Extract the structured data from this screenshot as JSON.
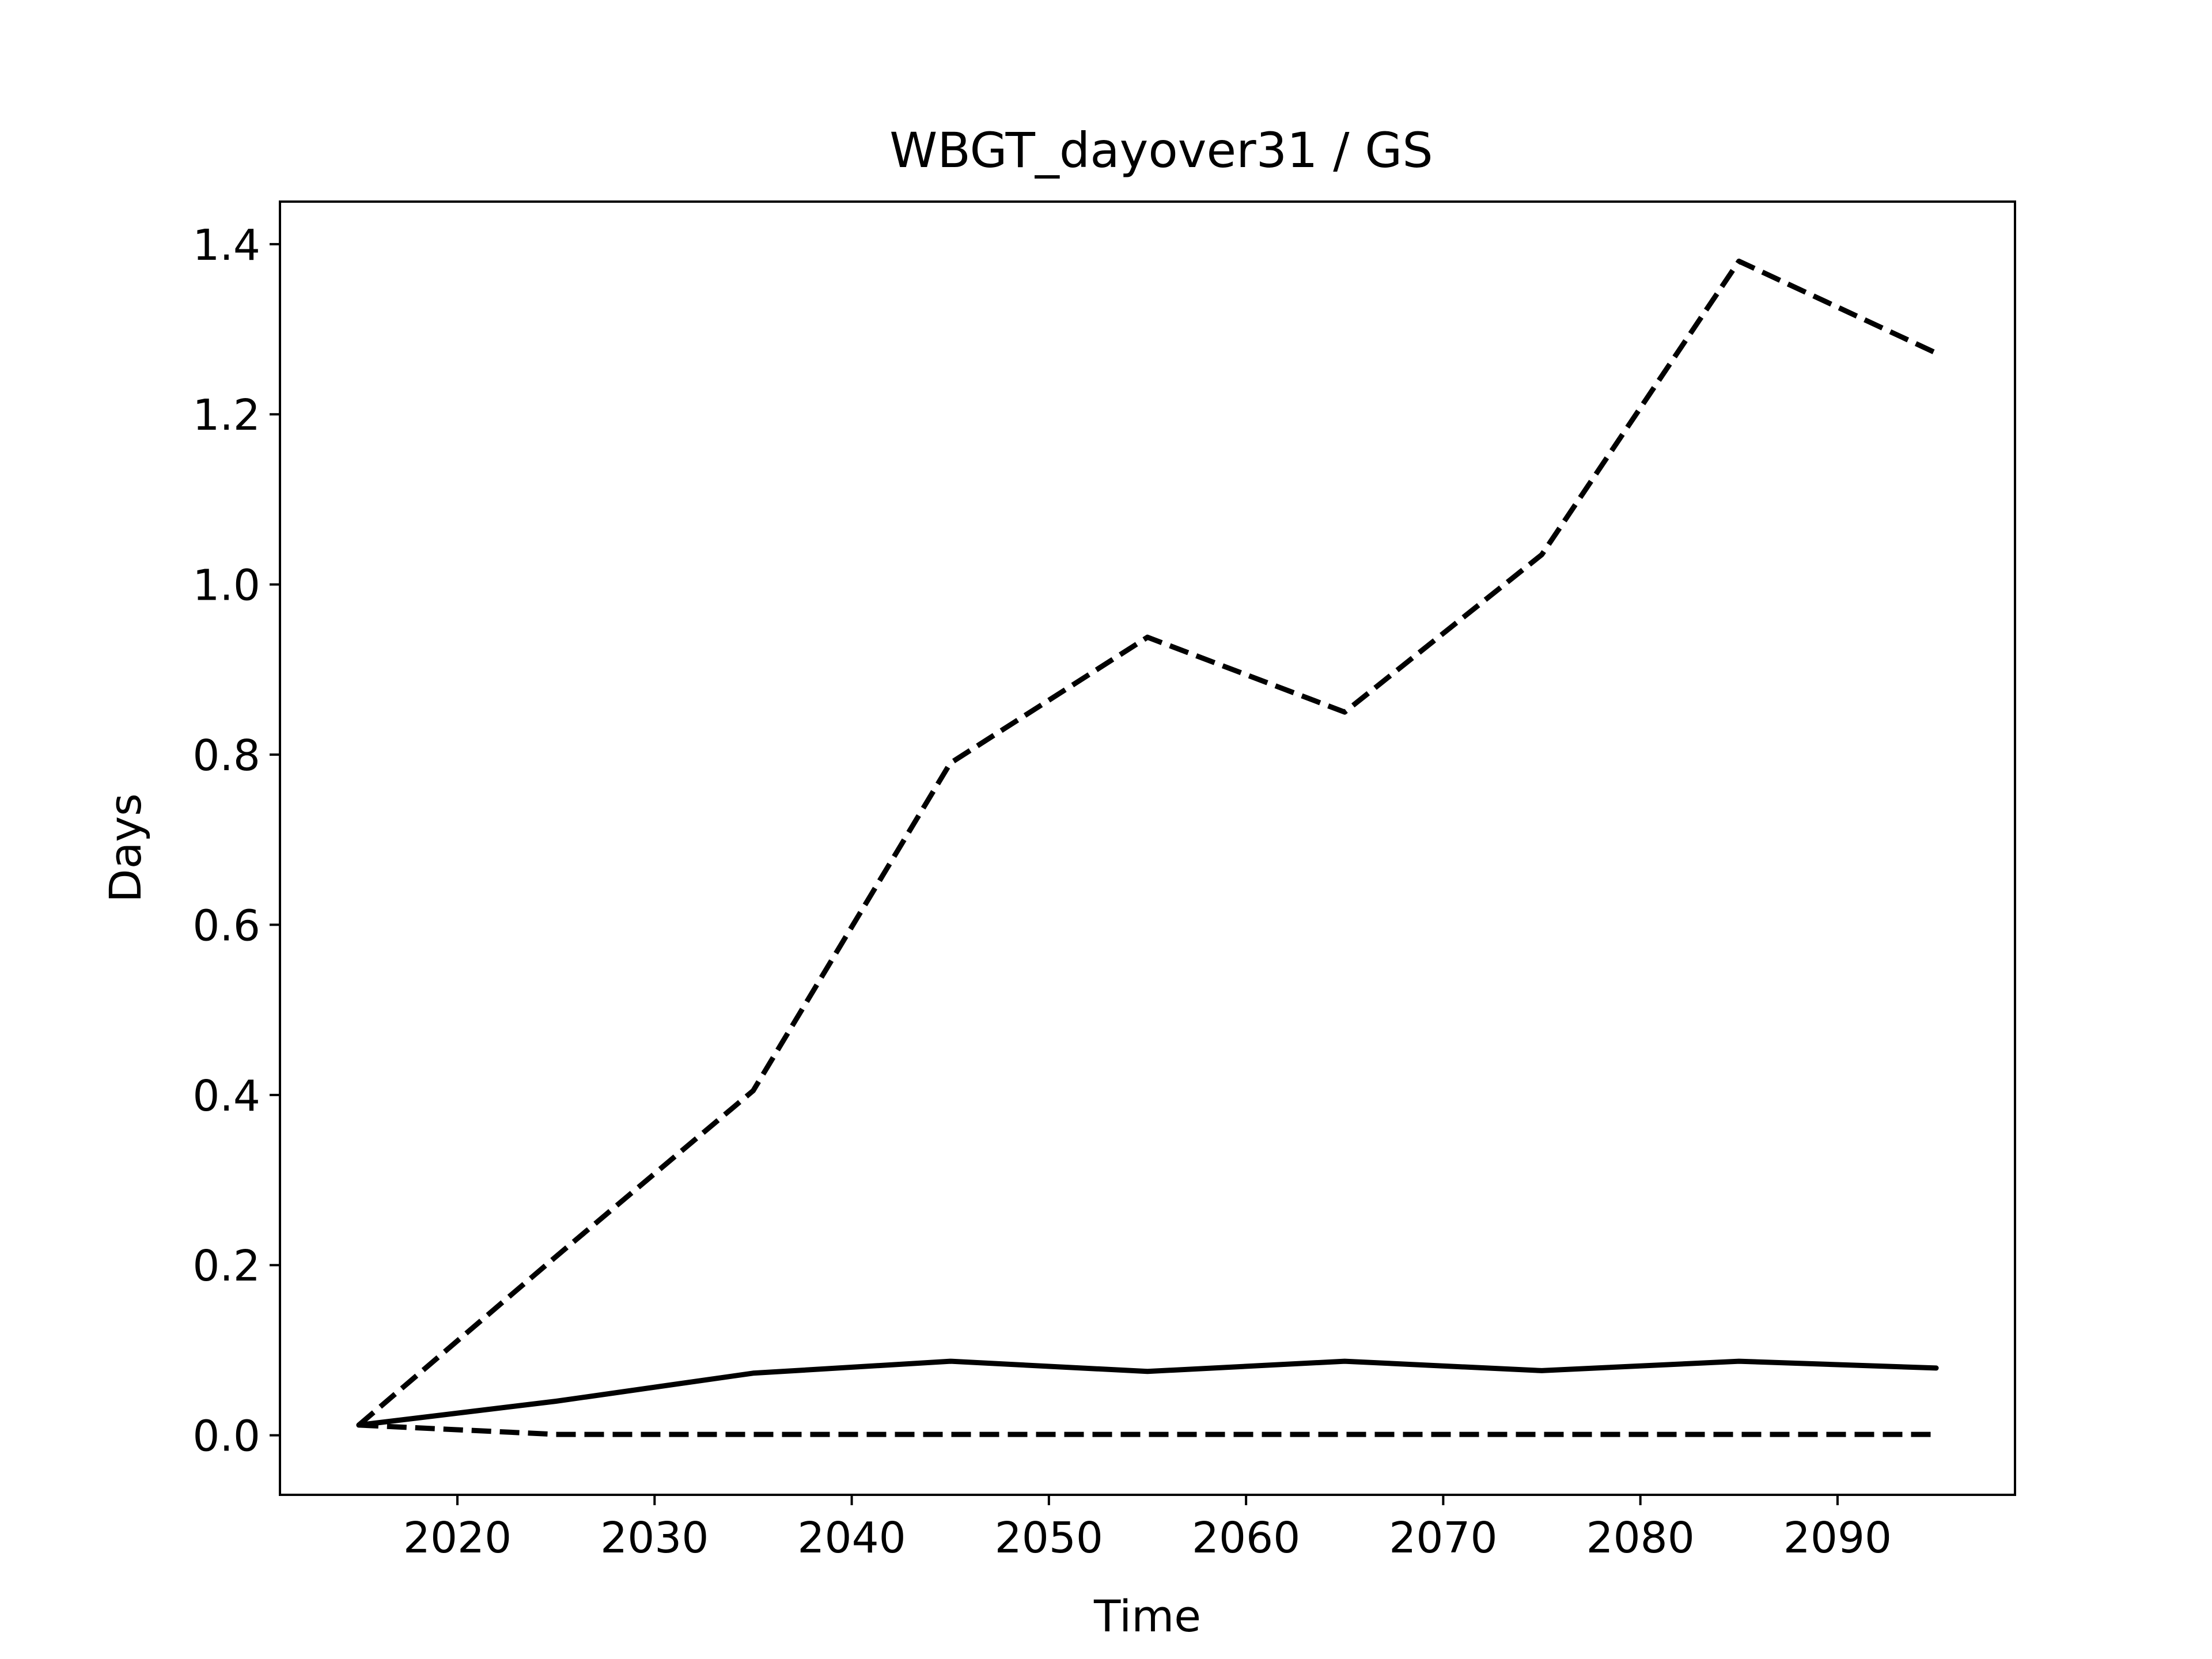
{
  "chart_data": {
    "type": "line",
    "title": "WBGT_dayover31 / GS",
    "xlabel": "Time",
    "ylabel": "Days",
    "xlim": [
      2011,
      2099
    ],
    "ylim": [
      -0.07,
      1.45
    ],
    "xticks": [
      2020,
      2030,
      2040,
      2050,
      2060,
      2070,
      2080,
      2090
    ],
    "yticks": [
      0.0,
      0.2,
      0.4,
      0.6,
      0.8,
      1.0,
      1.2,
      1.4
    ],
    "ytick_labels": [
      "0.0",
      "0.2",
      "0.4",
      "0.6",
      "0.8",
      "1.0",
      "1.2",
      "1.4"
    ],
    "grid": false,
    "legend": "none",
    "x": [
      2015,
      2025,
      2035,
      2045,
      2055,
      2065,
      2075,
      2085,
      2095
    ],
    "series": [
      {
        "style": "dashed",
        "color": "#000000",
        "values": [
          0.012,
          0.21,
          0.405,
          0.79,
          0.938,
          0.85,
          1.035,
          1.38,
          1.272
        ]
      },
      {
        "style": "solid",
        "color": "#000000",
        "values": [
          0.012,
          0.04,
          0.073,
          0.087,
          0.075,
          0.087,
          0.076,
          0.087,
          0.079
        ]
      },
      {
        "style": "dashed",
        "color": "#000000",
        "values": [
          0.012,
          0.001,
          0.001,
          0.001,
          0.001,
          0.001,
          0.001,
          0.001,
          0.001
        ]
      }
    ]
  }
}
